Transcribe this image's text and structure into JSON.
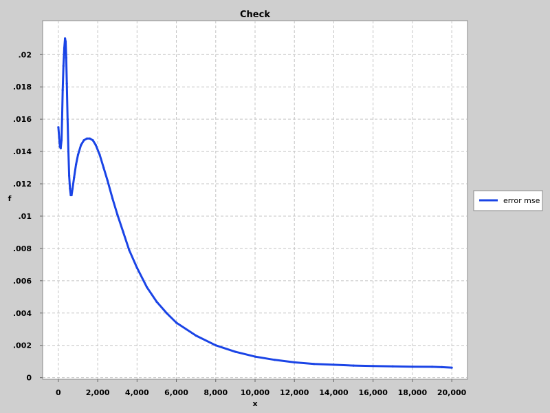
{
  "chart_data": {
    "type": "line",
    "title": "Check",
    "xlabel": "x",
    "ylabel": "f",
    "xlim": [
      -800,
      20800
    ],
    "ylim": [
      -0.0001,
      0.0221
    ],
    "grid": true,
    "legend_placement": "right",
    "x_ticks": [
      0,
      2000,
      4000,
      6000,
      8000,
      10000,
      12000,
      14000,
      16000,
      18000,
      20000
    ],
    "x_tick_labels": [
      "0",
      "2,000",
      "4,000",
      "6,000",
      "8,000",
      "10,000",
      "12,000",
      "14,000",
      "16,000",
      "18,000",
      "20,000"
    ],
    "y_ticks": [
      0,
      0.002,
      0.004,
      0.006,
      0.008,
      0.01,
      0.012,
      0.014,
      0.016,
      0.018,
      0.02
    ],
    "y_tick_labels": [
      "0",
      ".002",
      ".004",
      ".006",
      ".008",
      ".01",
      ".012",
      ".014",
      ".016",
      ".018",
      ".02"
    ],
    "series": [
      {
        "name": "error mse",
        "color": "#1a44e6",
        "points": [
          [
            0,
            0.0155
          ],
          [
            40,
            0.0149
          ],
          [
            80,
            0.0143
          ],
          [
            120,
            0.0142
          ],
          [
            160,
            0.0147
          ],
          [
            190,
            0.016
          ],
          [
            220,
            0.0178
          ],
          [
            260,
            0.0193
          ],
          [
            300,
            0.0204
          ],
          [
            340,
            0.021
          ],
          [
            370,
            0.0208
          ],
          [
            400,
            0.0198
          ],
          [
            430,
            0.0182
          ],
          [
            470,
            0.016
          ],
          [
            510,
            0.014
          ],
          [
            550,
            0.0125
          ],
          [
            590,
            0.0117
          ],
          [
            630,
            0.0113
          ],
          [
            670,
            0.0113
          ],
          [
            720,
            0.0117
          ],
          [
            800,
            0.0124
          ],
          [
            900,
            0.0132
          ],
          [
            1000,
            0.0138
          ],
          [
            1150,
            0.0144
          ],
          [
            1300,
            0.0147
          ],
          [
            1450,
            0.0148
          ],
          [
            1600,
            0.0148
          ],
          [
            1750,
            0.0147
          ],
          [
            1900,
            0.0144
          ],
          [
            2100,
            0.0138
          ],
          [
            2300,
            0.013
          ],
          [
            2500,
            0.0122
          ],
          [
            2750,
            0.0111
          ],
          [
            3000,
            0.0101
          ],
          [
            3300,
            0.009
          ],
          [
            3600,
            0.0079
          ],
          [
            4000,
            0.0068
          ],
          [
            4500,
            0.0056
          ],
          [
            5000,
            0.0047
          ],
          [
            5500,
            0.004
          ],
          [
            6000,
            0.0034
          ],
          [
            7000,
            0.0026
          ],
          [
            8000,
            0.002
          ],
          [
            9000,
            0.0016
          ],
          [
            10000,
            0.0013
          ],
          [
            11000,
            0.0011
          ],
          [
            12000,
            0.00095
          ],
          [
            13000,
            0.00085
          ],
          [
            14000,
            0.0008
          ],
          [
            15000,
            0.00075
          ],
          [
            16000,
            0.00072
          ],
          [
            17000,
            0.0007
          ],
          [
            18000,
            0.00068
          ],
          [
            19000,
            0.00067
          ],
          [
            19500,
            0.00065
          ],
          [
            20000,
            0.00062
          ]
        ]
      }
    ]
  }
}
